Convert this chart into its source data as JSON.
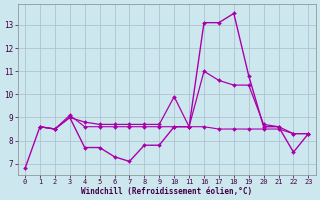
{
  "xlabel": "Windchill (Refroidissement éolien,°C)",
  "bg_color": "#cce8ee",
  "grid_color": "#aabbcc",
  "line_color": "#aa00aa",
  "ylim": [
    6.5,
    13.9
  ],
  "yticks": [
    7,
    8,
    9,
    10,
    11,
    12,
    13
  ],
  "n_cols": 20,
  "xtick_labels": [
    "0",
    "1",
    "2",
    "3",
    "4",
    "5",
    "6",
    "7",
    "8",
    "9",
    "10",
    "11",
    "16",
    "17",
    "18",
    "19",
    "20",
    "21",
    "22",
    "23"
  ],
  "series1_xi": [
    0,
    1,
    2,
    3,
    4,
    5,
    6,
    7,
    8,
    9,
    10,
    11,
    12,
    13,
    14,
    15,
    16,
    17,
    18,
    19
  ],
  "series1_y": [
    6.8,
    8.6,
    8.5,
    9.0,
    7.7,
    7.7,
    7.3,
    7.1,
    7.8,
    7.8,
    8.6,
    8.6,
    13.1,
    13.1,
    13.5,
    10.8,
    8.6,
    8.6,
    7.5,
    8.3
  ],
  "series2_xi": [
    1,
    2,
    3,
    4,
    5,
    6,
    7,
    8,
    9,
    10,
    11,
    12,
    13,
    14,
    15,
    16,
    17,
    18,
    19
  ],
  "series2_y": [
    8.6,
    8.5,
    9.0,
    8.8,
    8.7,
    8.7,
    8.7,
    8.7,
    8.7,
    9.9,
    8.6,
    11.0,
    10.6,
    10.4,
    10.4,
    8.7,
    8.6,
    8.3,
    8.3
  ],
  "series3_xi": [
    1,
    2,
    3,
    4,
    5,
    6,
    7,
    8,
    9,
    10,
    11,
    12,
    13,
    14,
    15,
    16,
    17,
    18,
    19
  ],
  "series3_y": [
    8.6,
    8.5,
    9.1,
    8.6,
    8.6,
    8.6,
    8.6,
    8.6,
    8.6,
    8.6,
    8.6,
    8.6,
    8.5,
    8.5,
    8.5,
    8.5,
    8.5,
    8.3,
    8.3
  ]
}
